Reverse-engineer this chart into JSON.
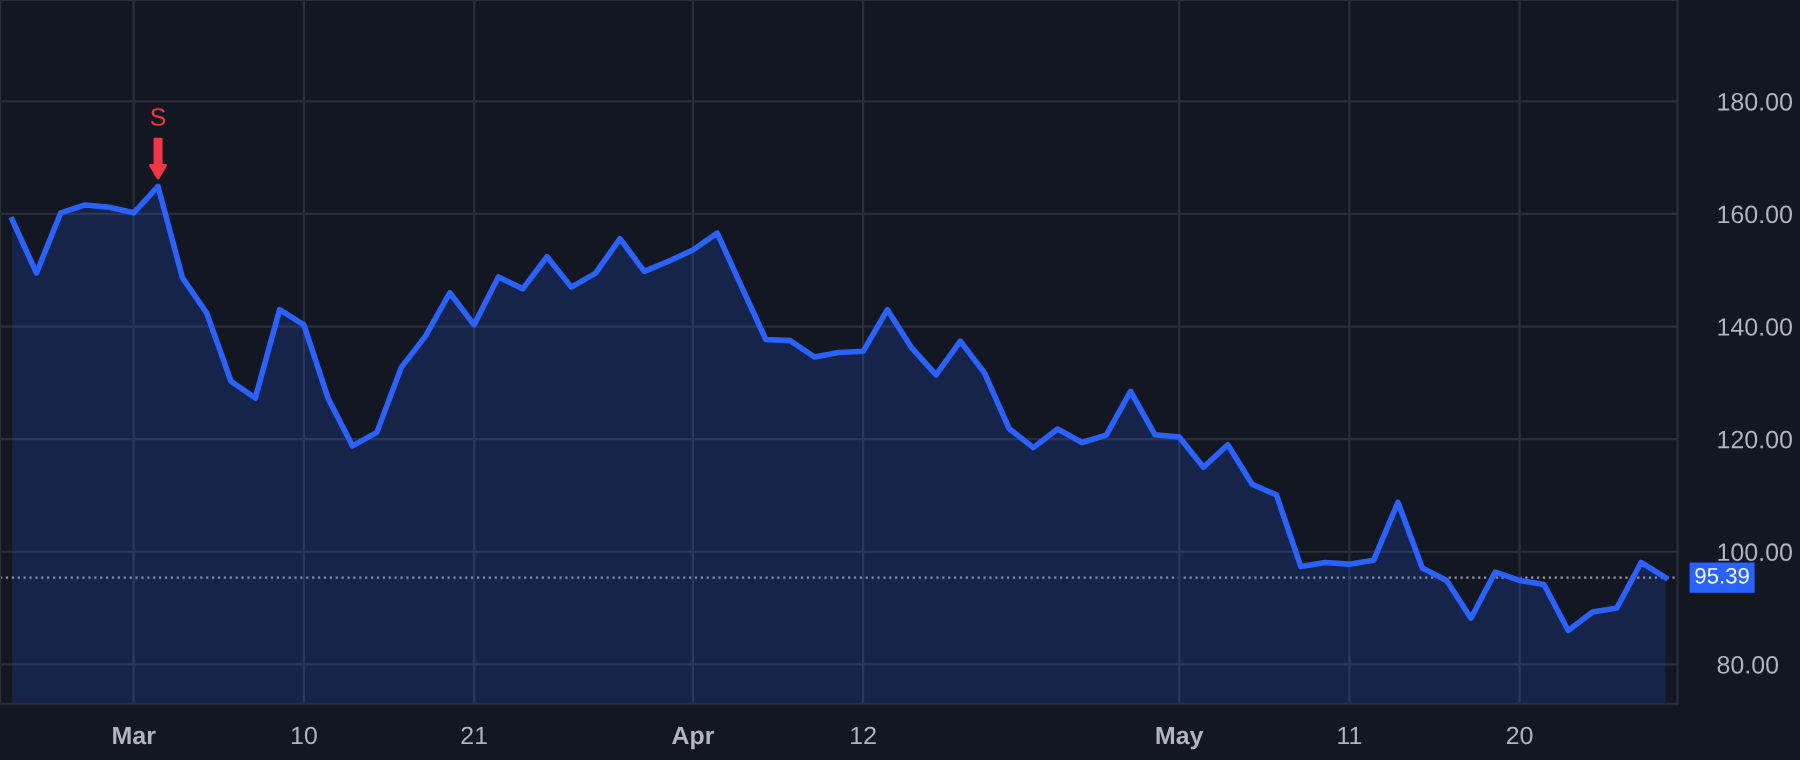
{
  "chart_data": {
    "type": "area",
    "categories": [
      null,
      null,
      null,
      null,
      null,
      "Mar",
      null,
      null,
      null,
      null,
      null,
      null,
      "10",
      null,
      null,
      null,
      null,
      null,
      null,
      "21",
      null,
      null,
      null,
      null,
      null,
      null,
      null,
      null,
      "Apr",
      null,
      null,
      null,
      null,
      null,
      null,
      "12",
      null,
      null,
      null,
      null,
      null,
      null,
      null,
      null,
      null,
      null,
      null,
      null,
      "May",
      null,
      null,
      null,
      null,
      null,
      null,
      "11",
      null,
      null,
      null,
      null,
      null,
      null,
      "20",
      null,
      null,
      null,
      null,
      null,
      null
    ],
    "series": [
      {
        "color": "#2962ff",
        "values": [
          159.0,
          149.5,
          160.2,
          161.6,
          161.2,
          160.2,
          164.9,
          148.7,
          142.4,
          130.3,
          127.3,
          143.0,
          140.3,
          127.2,
          118.8,
          121.2,
          132.7,
          138.3,
          146.0,
          140.3,
          148.8,
          146.7,
          152.4,
          147.0,
          149.5,
          155.6,
          149.8,
          151.6,
          153.6,
          156.6,
          147.1,
          137.7,
          137.5,
          134.6,
          135.4,
          135.6,
          143.0,
          136.2,
          131.4,
          137.4,
          131.7,
          121.9,
          118.5,
          121.8,
          119.4,
          120.7,
          128.5,
          120.8,
          120.4,
          115.0,
          119.0,
          112.0,
          110.1,
          97.4,
          98.1,
          97.8,
          98.5,
          108.8,
          97.1,
          94.9,
          88.2,
          96.4,
          94.9,
          94.2,
          86.0,
          89.3,
          90.0,
          98.1,
          95.4
        ]
      }
    ],
    "ylim": [
      73,
      198
    ],
    "yticks": [
      {
        "value": 80,
        "label": "80.00"
      },
      {
        "value": 100,
        "label": "100.00"
      },
      {
        "value": 120,
        "label": "120.00"
      },
      {
        "value": 140,
        "label": "140.00"
      },
      {
        "value": 160,
        "label": "160.00"
      },
      {
        "value": 180,
        "label": "180.00"
      }
    ],
    "ref_lines": [
      {
        "axis": "y",
        "value": 95.39,
        "label": "95.39",
        "color": "#9598a1",
        "line_style": "dotted"
      }
    ],
    "annotations": [
      {
        "text": "S",
        "y": 164.9
      }
    ],
    "grid": true
  }
}
